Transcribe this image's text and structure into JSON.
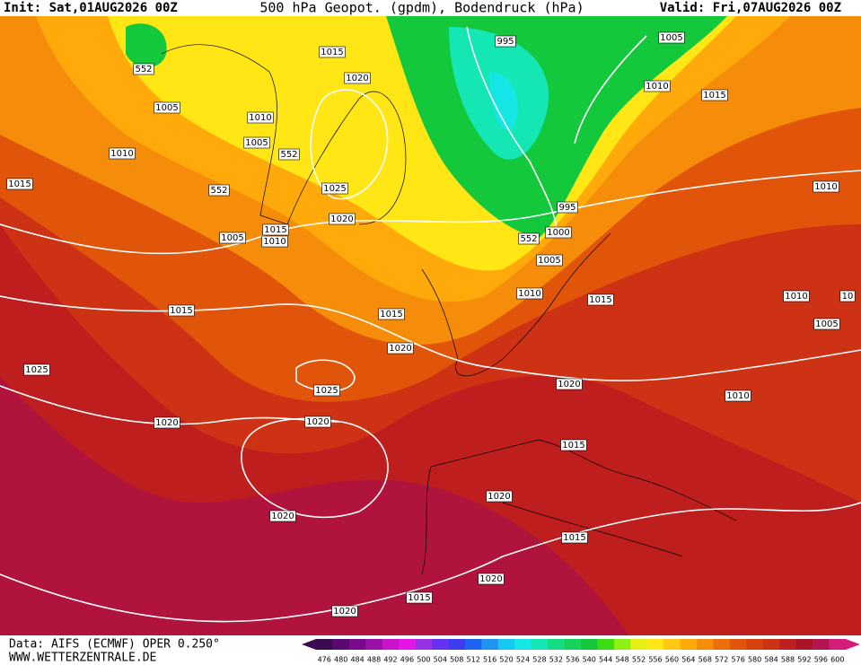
{
  "header": {
    "init": "Init: Sat,01AUG2026 00Z",
    "title": "500 hPa Geopot. (gpdm), Bodendruck (hPa)",
    "valid": "Valid: Fri,07AUG2026 00Z"
  },
  "footer": {
    "source": "Data: AIFS (ECMWF) OPER 0.250°",
    "url": "WWW.WETTERZENTRALE.DE"
  },
  "colorbar": {
    "values": [
      476,
      480,
      484,
      488,
      492,
      496,
      500,
      504,
      508,
      512,
      516,
      520,
      524,
      528,
      532,
      536,
      540,
      544,
      548,
      552,
      556,
      560,
      564,
      568,
      572,
      576,
      580,
      584,
      588,
      592,
      596,
      600
    ],
    "colors": [
      "#3c0a50",
      "#5a0a6e",
      "#7a0a8c",
      "#9a10a8",
      "#c814c8",
      "#e614e6",
      "#9632e6",
      "#6432f0",
      "#3c3cf0",
      "#1e64f0",
      "#1e96f0",
      "#14c8f0",
      "#14e6e6",
      "#14e6b4",
      "#14dc82",
      "#14d25a",
      "#14c83c",
      "#3cdc14",
      "#8cf014",
      "#e6f014",
      "#ffe614",
      "#ffc814",
      "#ffaa0a",
      "#f58c0a",
      "#eb6e0a",
      "#e1550a",
      "#d7410f",
      "#cd3214",
      "#be1e1e",
      "#aa1428",
      "#b41450",
      "#d21e78"
    ]
  },
  "isobar_labels": [
    "1015",
    "1005",
    "995",
    "552",
    "1020",
    "1010",
    "1015",
    "1005",
    "1010",
    "1005",
    "552",
    "1010",
    "1015",
    "552",
    "1025",
    "1010",
    "995",
    "1020",
    "1015",
    "1005",
    "1010",
    "552",
    "1000",
    "1005",
    "1010",
    "1015",
    "1010",
    "10",
    "1015",
    "1015",
    "1005",
    "1020",
    "1025",
    "1020",
    "1025",
    "1010",
    "1020",
    "1020",
    "1015",
    "1020",
    "1020",
    "1015",
    "1020",
    "1015",
    "1020"
  ]
}
